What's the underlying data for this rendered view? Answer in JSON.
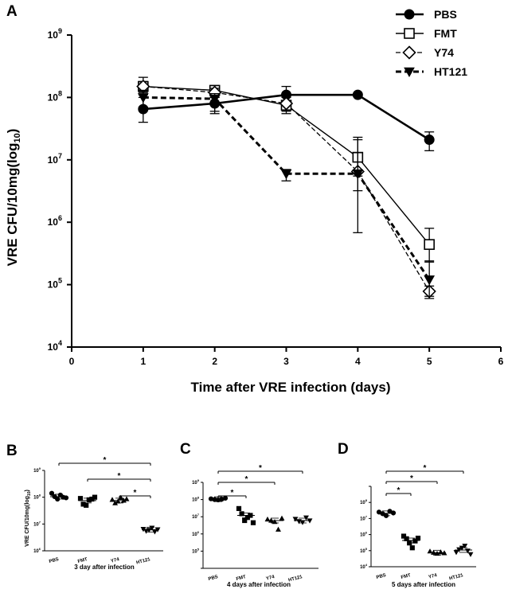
{
  "panel_labels": {
    "a": "A",
    "b": "B",
    "c": "C",
    "d": "D"
  },
  "main_ylabel_prefix": "VRE CFU/10mg",
  "main_ylabel_log": "(log",
  "main_ylabel_sub": "10",
  "main_ylabel_close": ")",
  "small_ylabel_prefix": "VRE CFU/10mg",
  "small_ylabel_log": "(log",
  "small_ylabel_sub": "10",
  "small_ylabel_close": ")",
  "chart_data": [
    {
      "id": "A",
      "type": "line",
      "title": "",
      "xlabel": "Time after VRE  infection (days)",
      "ylabel": "VRE CFU/10mg (log10)",
      "yscale": "log",
      "xlim": [
        0,
        6
      ],
      "ylim": [
        10000,
        1000000000
      ],
      "x_ticks": [
        "0",
        "1",
        "2",
        "3",
        "4",
        "5",
        "6"
      ],
      "y_ticks": [
        {
          "base": "10",
          "exp": "9",
          "value": 1000000000
        },
        {
          "base": "10",
          "exp": "8",
          "value": 100000000
        },
        {
          "base": "10",
          "exp": "7",
          "value": 10000000
        },
        {
          "base": "10",
          "exp": "6",
          "value": 1000000
        },
        {
          "base": "10",
          "exp": "5",
          "value": 100000
        },
        {
          "base": "10",
          "exp": "4",
          "value": 10000
        }
      ],
      "legend_position": "top-right",
      "series": [
        {
          "name": "PBS",
          "marker": "circle",
          "line": "solid-bold",
          "x": [
            1,
            2,
            3,
            4,
            5
          ],
          "y": [
            65000000,
            80000000,
            110000000,
            110000000,
            21000000
          ],
          "err_low": [
            40000000,
            60000000,
            75000000,
            110000000,
            14000000
          ],
          "err_high": [
            100000000,
            100000000,
            150000000,
            110000000,
            28000000
          ]
        },
        {
          "name": "FMT",
          "marker": "square",
          "line": "solid",
          "x": [
            1,
            2,
            3,
            4,
            5
          ],
          "y": [
            150000000,
            130000000,
            75000000,
            11000000,
            440000
          ],
          "err_low": [
            110000000,
            105000000,
            55000000,
            5500000,
            230000
          ],
          "err_high": [
            210000000,
            155000000,
            105000000,
            23000000,
            800000
          ]
        },
        {
          "name": "Y74",
          "marker": "diamond",
          "line": "dashed",
          "x": [
            1,
            2,
            3,
            4,
            5
          ],
          "y": [
            150000000,
            120000000,
            80000000,
            6500000,
            78000
          ],
          "err_low": [
            120000000,
            100000000,
            60000000,
            3200000,
            65000
          ],
          "err_high": [
            180000000,
            140000000,
            100000000,
            13000000,
            95000
          ]
        },
        {
          "name": "HT121",
          "marker": "triangle-down",
          "line": "dashed-bold",
          "x": [
            1,
            2,
            3,
            4,
            5
          ],
          "y": [
            100000000,
            95000000,
            6000000,
            6000000,
            120000
          ],
          "err_low": [
            70000000,
            55000000,
            4600000,
            680000,
            60000
          ],
          "err_high": [
            130000000,
            115000000,
            7000000,
            21000000,
            240000
          ]
        }
      ]
    },
    {
      "id": "B",
      "type": "scatter",
      "xlabel": "3 day after infection",
      "ylabel": "VRE CFU/10mg (log10)",
      "yscale": "log",
      "ylim": [
        1000000,
        1000000000
      ],
      "categories": [
        "PBS",
        "FMT",
        "Y74",
        "HT121"
      ],
      "y_ticks": [
        {
          "base": "10",
          "exp": "9"
        },
        {
          "base": "10",
          "exp": "8"
        },
        {
          "base": "10",
          "exp": "7"
        },
        {
          "base": "10",
          "exp": "6"
        }
      ],
      "marker_shapes": [
        "circle",
        "square",
        "triangle-up",
        "triangle-down"
      ],
      "points": [
        [
          140000000,
          105000000,
          85000000,
          120000000,
          100000000,
          95000000
        ],
        [
          90000000,
          55000000,
          50000000,
          80000000,
          85000000,
          100000000
        ],
        [
          80000000,
          60000000,
          70000000,
          95000000,
          75000000,
          85000000
        ],
        [
          6500000,
          5500000,
          6000000,
          7200000,
          5200000,
          6300000
        ]
      ],
      "means": [
        105000000,
        75000000,
        75000000,
        6200000
      ],
      "significance": [
        {
          "from": "PBS",
          "to": "HT121",
          "label": "*"
        },
        {
          "from": "FMT",
          "to": "HT121",
          "label": "*"
        },
        {
          "from": "Y74",
          "to": "HT121",
          "label": "*"
        }
      ]
    },
    {
      "id": "C",
      "type": "scatter",
      "xlabel": "4 days after infection",
      "ylabel": "",
      "yscale": "log",
      "ylim": [
        10000,
        1000000000
      ],
      "categories": [
        "PBS",
        "FMT",
        "Y74",
        "HT121"
      ],
      "y_ticks": [
        {
          "base": "10",
          "exp": "9"
        },
        {
          "base": "10",
          "exp": "8"
        },
        {
          "base": "10",
          "exp": "7"
        },
        {
          "base": "10",
          "exp": "6"
        },
        {
          "base": "10",
          "exp": "5"
        }
      ],
      "marker_shapes": [
        "circle",
        "square",
        "triangle-up",
        "triangle-down"
      ],
      "points": [
        [
          110000000,
          100000000,
          95000000,
          105000000,
          120000000
        ],
        [
          30000000,
          15000000,
          6000000,
          9000000,
          12000000,
          4500000
        ],
        [
          7000000,
          6000000,
          5000000,
          1800000,
          8000000
        ],
        [
          7500000,
          5500000,
          4800000,
          9000000,
          6000000
        ]
      ],
      "means": [
        105000000,
        12000000,
        6000000,
        6000000
      ],
      "significance": [
        {
          "from": "PBS",
          "to": "HT121",
          "label": "*"
        },
        {
          "from": "PBS",
          "to": "Y74",
          "label": "*"
        },
        {
          "from": "PBS",
          "to": "FMT",
          "label": "*"
        }
      ]
    },
    {
      "id": "D",
      "type": "scatter",
      "xlabel": "5 days after infection",
      "ylabel": "",
      "yscale": "log",
      "ylim": [
        10000,
        1000000000
      ],
      "categories": [
        "PBS",
        "FMT",
        "Y74",
        "HT121"
      ],
      "y_ticks": [
        {
          "base": "10",
          "exp": "8"
        },
        {
          "base": "10",
          "exp": "7"
        },
        {
          "base": "10",
          "exp": "6"
        },
        {
          "base": "10",
          "exp": "5"
        },
        {
          "base": "10",
          "exp": "4"
        }
      ],
      "marker_shapes": [
        "circle",
        "square",
        "triangle-up",
        "triangle-down"
      ],
      "points": [
        [
          25000000,
          20000000,
          15000000,
          28000000,
          22000000
        ],
        [
          800000,
          550000,
          300000,
          150000,
          400000,
          600000
        ],
        [
          90000,
          75000,
          65000,
          80000,
          70000
        ],
        [
          80000,
          120000,
          150000,
          200000,
          100000,
          60000
        ]
      ],
      "means": [
        21000000,
        430000,
        75000,
        110000
      ],
      "significance": [
        {
          "from": "PBS",
          "to": "HT121",
          "label": "*"
        },
        {
          "from": "PBS",
          "to": "Y74",
          "label": "*"
        },
        {
          "from": "PBS",
          "to": "FMT",
          "label": "*"
        }
      ]
    }
  ]
}
